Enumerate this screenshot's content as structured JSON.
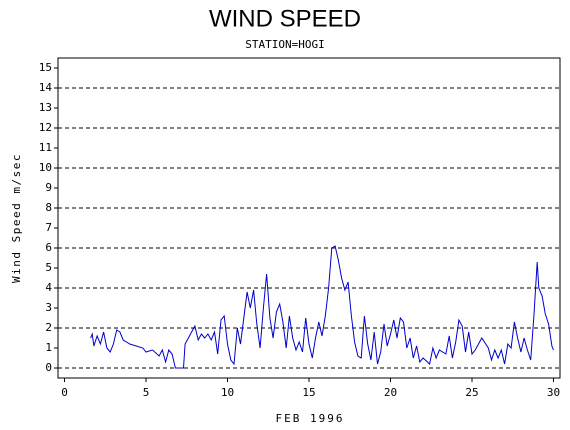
{
  "chart_data": {
    "type": "line",
    "title": "WIND SPEED",
    "subtitle": "STATION=HOGI",
    "x_label": "FEB 1996",
    "y_label": "Wind Speed m/sec",
    "x": [
      1.6,
      1.7,
      1.8,
      2.0,
      2.2,
      2.4,
      2.6,
      2.8,
      3.0,
      3.2,
      3.4,
      3.6,
      3.8,
      4.0,
      4.4,
      4.8,
      5.0,
      5.4,
      5.8,
      6.0,
      6.2,
      6.4,
      6.6,
      6.8,
      7.0,
      7.3,
      7.4,
      7.6,
      7.8,
      8.0,
      8.2,
      8.4,
      8.6,
      8.8,
      9.0,
      9.2,
      9.4,
      9.6,
      9.8,
      10.0,
      10.2,
      10.4,
      10.6,
      10.8,
      11.0,
      11.2,
      11.4,
      11.6,
      11.8,
      12.0,
      12.2,
      12.4,
      12.6,
      12.8,
      13.0,
      13.2,
      13.4,
      13.6,
      13.8,
      14.0,
      14.2,
      14.4,
      14.6,
      14.8,
      15.0,
      15.2,
      15.4,
      15.6,
      15.8,
      16.0,
      16.2,
      16.4,
      16.6,
      16.8,
      17.0,
      17.2,
      17.4,
      17.6,
      17.8,
      18.0,
      18.2,
      18.4,
      18.6,
      18.8,
      19.0,
      19.2,
      19.4,
      19.6,
      19.8,
      20.0,
      20.2,
      20.4,
      20.6,
      20.8,
      21.0,
      21.2,
      21.4,
      21.6,
      21.8,
      22.0,
      22.4,
      22.6,
      22.8,
      23.0,
      23.4,
      23.6,
      23.8,
      24.0,
      24.2,
      24.4,
      24.6,
      24.8,
      25.0,
      25.2,
      25.6,
      26.0,
      26.2,
      26.4,
      26.6,
      26.8,
      27.0,
      27.2,
      27.4,
      27.6,
      27.8,
      28.0,
      28.2,
      28.4,
      28.6,
      28.8,
      29.0,
      29.1,
      29.3,
      29.5,
      29.7,
      29.9,
      30.0
    ],
    "series": [
      {
        "name": "Wind Speed",
        "color": "#0000cc",
        "values": [
          1.5,
          1.7,
          1.1,
          1.6,
          1.2,
          1.8,
          1.0,
          0.8,
          1.2,
          1.9,
          1.8,
          1.4,
          1.3,
          1.2,
          1.1,
          1.0,
          0.8,
          0.9,
          0.6,
          0.9,
          0.3,
          0.9,
          0.7,
          0.0,
          0.0,
          0.0,
          1.2,
          1.5,
          1.8,
          2.1,
          1.4,
          1.7,
          1.5,
          1.7,
          1.4,
          1.8,
          0.7,
          2.4,
          2.6,
          1.2,
          0.4,
          0.2,
          2.0,
          1.2,
          2.5,
          3.8,
          3.0,
          3.9,
          2.2,
          1.0,
          3.0,
          4.7,
          2.5,
          1.5,
          2.8,
          3.2,
          2.3,
          1.0,
          2.6,
          1.5,
          0.9,
          1.3,
          0.8,
          2.5,
          1.2,
          0.5,
          1.5,
          2.3,
          1.6,
          2.6,
          4.0,
          6.0,
          6.1,
          5.4,
          4.5,
          3.9,
          4.3,
          2.6,
          1.3,
          0.6,
          0.5,
          2.6,
          1.2,
          0.4,
          1.8,
          0.2,
          0.8,
          2.2,
          1.1,
          1.7,
          2.4,
          1.5,
          2.5,
          2.3,
          1.0,
          1.5,
          0.5,
          1.1,
          0.3,
          0.5,
          0.2,
          1.0,
          0.5,
          0.9,
          0.7,
          1.6,
          0.5,
          1.3,
          2.4,
          2.1,
          0.8,
          1.8,
          0.7,
          0.9,
          1.5,
          1.0,
          0.4,
          0.9,
          0.5,
          0.9,
          0.2,
          1.2,
          1.0,
          2.3,
          1.5,
          0.8,
          1.5,
          0.9,
          0.4,
          2.6,
          5.3,
          4.0,
          3.6,
          2.7,
          2.2,
          1.1,
          0.9
        ]
      }
    ],
    "xlim": [
      -0.4,
      30.4
    ],
    "ylim": [
      -0.5,
      15.5
    ],
    "xticks": [
      0,
      5,
      10,
      15,
      20,
      25,
      30
    ],
    "yticks": [
      0,
      1,
      2,
      3,
      4,
      5,
      6,
      7,
      8,
      9,
      10,
      11,
      12,
      13,
      14,
      15
    ],
    "grid_values": [
      0,
      2,
      4,
      6,
      8,
      10,
      12,
      14
    ],
    "grid": true
  }
}
